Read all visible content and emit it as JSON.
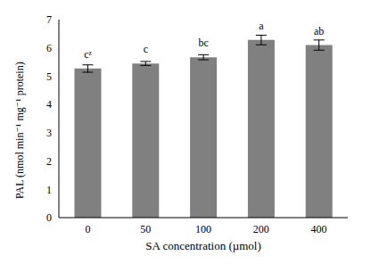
{
  "chart_data": {
    "type": "bar",
    "categories": [
      "0",
      "50",
      "100",
      "200",
      "400"
    ],
    "values": [
      5.27,
      5.45,
      5.67,
      6.28,
      6.1
    ],
    "errors": [
      0.13,
      0.07,
      0.09,
      0.17,
      0.18
    ],
    "annotations": [
      "cᶻ",
      "c",
      "bc",
      "a",
      "ab"
    ],
    "color": "#808080",
    "xlabel": "SA concentration (µmol)",
    "ylabel": "PAL (nmol min⁻¹ mg⁻¹ protein)",
    "ylim": [
      0,
      7
    ],
    "yticks": [
      0,
      1,
      2,
      3,
      4,
      5,
      6,
      7
    ],
    "grid": false
  }
}
